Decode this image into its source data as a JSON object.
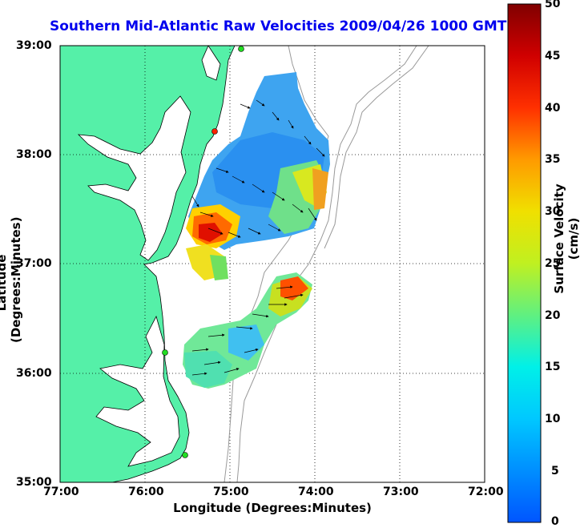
{
  "title": "Southern Mid-Atlantic Raw Velocities 2009/04/26 1000 GMT",
  "xlabel": "Longitude (Degrees:Minutes)",
  "ylabel": "Latitude (Degrees:Minutes)",
  "colorbar_label": "Surface Velocity (cm/s)",
  "x_ticks": [
    "77:00",
    "76:00",
    "75:00",
    "74:00",
    "73:00",
    "72:00"
  ],
  "y_ticks": [
    "39:00",
    "38:00",
    "37:00",
    "36:00",
    "35:00"
  ],
  "colorbar_ticks": [
    "50",
    "45",
    "40",
    "35",
    "30",
    "25",
    "20",
    "15",
    "10",
    "5",
    "0"
  ],
  "colors": {
    "land": "#55f0a8",
    "title": "#0000ee",
    "site_marker": "#22dd22",
    "site_marker_red": "#ff2200",
    "bathymetry": "#999999"
  }
}
